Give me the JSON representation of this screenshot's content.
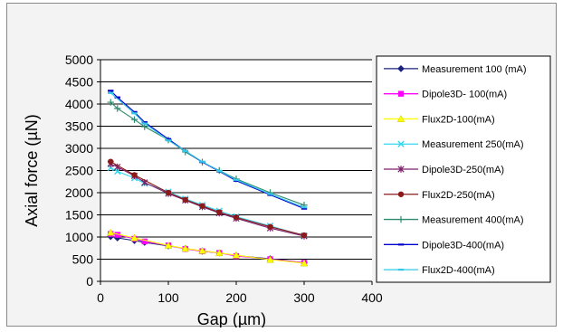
{
  "chart_data": {
    "type": "line",
    "title": "",
    "xlabel": "Gap (µm)",
    "ylabel": "Axial force (µN)",
    "xlim": [
      0,
      400
    ],
    "ylim": [
      0,
      5000
    ],
    "xticks": [
      0,
      100,
      200,
      300,
      400
    ],
    "yticks": [
      0,
      500,
      1000,
      1500,
      2000,
      2500,
      3000,
      3500,
      4000,
      4500,
      5000
    ],
    "grid": "horizontal major lines",
    "legend_position": "right",
    "series": [
      {
        "name": "Measurement  100 (mA)",
        "color": "#1a237e",
        "marker": "diamond",
        "x": [
          15,
          25,
          50,
          65,
          100,
          125,
          150,
          175,
          200,
          250,
          300
        ],
        "y": [
          1010,
          980,
          920,
          880,
          800,
          740,
          680,
          640,
          580,
          510,
          420
        ]
      },
      {
        "name": "Dipole3D- 100(mA)",
        "color": "#ff00ff",
        "marker": "square",
        "x": [
          15,
          25,
          50,
          65,
          100,
          125,
          150,
          175,
          200,
          250,
          300
        ],
        "y": [
          1070,
          1050,
          960,
          900,
          810,
          730,
          680,
          640,
          570,
          500,
          420
        ]
      },
      {
        "name": "Flux2D-100(mA)",
        "color": "#ffff00",
        "marker": "triangle",
        "x": [
          15,
          50,
          100,
          125,
          150,
          175,
          200,
          250,
          300
        ],
        "y": [
          1100,
          980,
          810,
          740,
          690,
          640,
          590,
          490,
          410
        ]
      },
      {
        "name": "Measurement 250(mA)",
        "color": "#33d6f0",
        "marker": "x",
        "x": [
          15,
          25,
          50,
          65,
          100,
          125,
          150,
          175,
          200,
          250,
          300
        ],
        "y": [
          2560,
          2480,
          2330,
          2210,
          2020,
          1860,
          1720,
          1590,
          1460,
          1250,
          1030
        ]
      },
      {
        "name": "Dipole3D-250(mA)",
        "color": "#7b1f6a",
        "marker": "asterisk",
        "x": [
          15,
          25,
          50,
          65,
          100,
          125,
          150,
          175,
          200,
          250,
          300
        ],
        "y": [
          2650,
          2580,
          2380,
          2230,
          1980,
          1830,
          1680,
          1540,
          1420,
          1200,
          1020
        ]
      },
      {
        "name": "Flux2D-250(mA)",
        "color": "#8b1a1a",
        "marker": "circle",
        "x": [
          15,
          50,
          100,
          125,
          150,
          175,
          200,
          250,
          300
        ],
        "y": [
          2700,
          2400,
          2000,
          1840,
          1700,
          1560,
          1440,
          1230,
          1040
        ]
      },
      {
        "name": "Measurement 400(mA)",
        "color": "#2e8b6f",
        "marker": "plus",
        "x": [
          15,
          25,
          50,
          65,
          100,
          125,
          150,
          175,
          200,
          250,
          300
        ],
        "y": [
          4040,
          3900,
          3650,
          3490,
          3190,
          2920,
          2690,
          2500,
          2310,
          2000,
          1720
        ]
      },
      {
        "name": "Dipole3D-400(mA)",
        "color": "#0000cc",
        "marker": "dash",
        "x": [
          15,
          25,
          50,
          65,
          100,
          125,
          150,
          175,
          200,
          250,
          300
        ],
        "y": [
          4300,
          4150,
          3820,
          3590,
          3210,
          2940,
          2690,
          2480,
          2270,
          1950,
          1640
        ]
      },
      {
        "name": "Flux2D-400(mA)",
        "color": "#33c8e8",
        "marker": "dash",
        "x": [
          15,
          50,
          65,
          100,
          125,
          150,
          175,
          200,
          250,
          300
        ],
        "y": [
          4250,
          3790,
          3560,
          3180,
          2940,
          2700,
          2490,
          2290,
          1970,
          1670
        ]
      }
    ]
  }
}
